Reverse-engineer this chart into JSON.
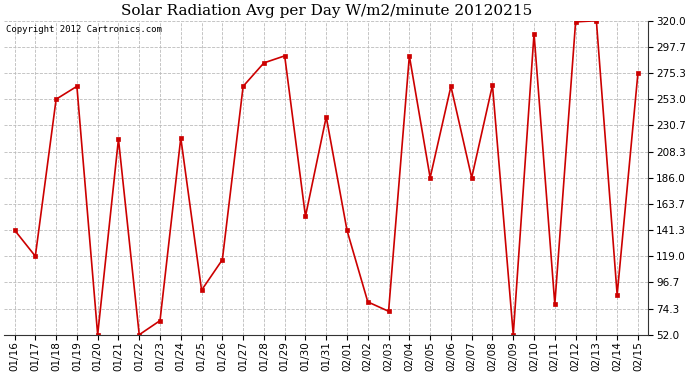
{
  "title": "Solar Radiation Avg per Day W/m2/minute 20120215",
  "copyright": "Copyright 2012 Cartronics.com",
  "x_labels": [
    "01/16",
    "01/17",
    "01/18",
    "01/19",
    "01/20",
    "01/21",
    "01/22",
    "01/23",
    "01/24",
    "01/25",
    "01/26",
    "01/27",
    "01/28",
    "01/29",
    "01/30",
    "01/31",
    "02/01",
    "02/02",
    "02/03",
    "02/04",
    "02/05",
    "02/06",
    "02/07",
    "02/08",
    "02/09",
    "02/10",
    "02/11",
    "02/12",
    "02/13",
    "02/14",
    "02/15"
  ],
  "y_values": [
    141.3,
    119.0,
    253.0,
    264.0,
    52.0,
    219.0,
    52.0,
    64.0,
    220.0,
    90.0,
    116.0,
    264.0,
    284.0,
    290.0,
    153.0,
    238.0,
    141.0,
    80.0,
    72.0,
    290.0,
    186.0,
    264.0,
    186.0,
    265.0,
    52.0,
    309.0,
    78.0,
    319.0,
    320.0,
    86.0,
    275.3
  ],
  "line_color": "#cc0000",
  "marker": "s",
  "marker_size": 2.5,
  "background_color": "#ffffff",
  "grid_color": "#bbbbbb",
  "y_min": 52.0,
  "y_max": 320.0,
  "y_ticks": [
    52.0,
    74.3,
    96.7,
    119.0,
    141.3,
    163.7,
    186.0,
    208.3,
    230.7,
    253.0,
    275.3,
    297.7,
    320.0
  ],
  "title_fontsize": 11,
  "tick_fontsize": 7.5,
  "copyright_fontsize": 6.5,
  "linewidth": 1.2
}
